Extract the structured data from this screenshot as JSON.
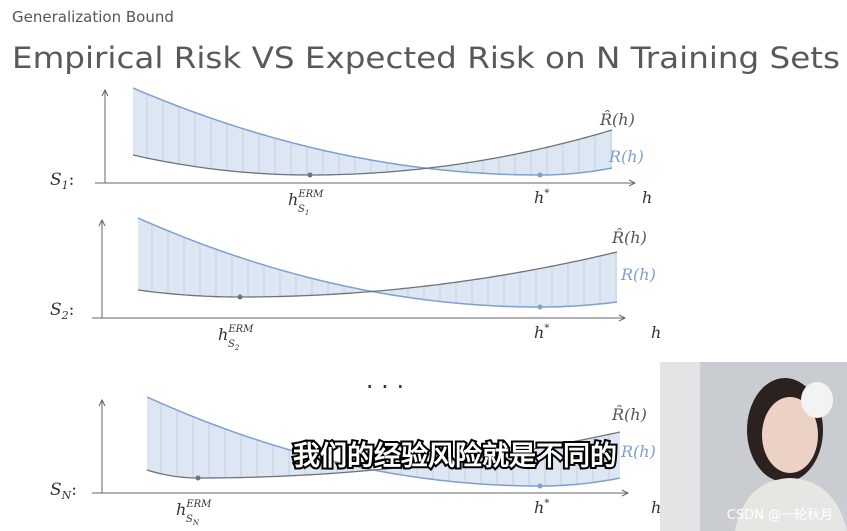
{
  "header": {
    "section": "Generalization Bound",
    "title": "Empirical Risk VS Expected Risk on N Training Sets"
  },
  "panels": [
    {
      "set": {
        "main": "S",
        "sub": "1",
        "suffix": ":"
      },
      "empirical_label": "R̂(h)",
      "expected_label": "R(h)",
      "axis_label": "h",
      "erm": {
        "main": "h",
        "sup": "ERM",
        "sub": "S",
        "subsub": "1"
      },
      "optimum": {
        "main": "h",
        "sup": "*"
      }
    },
    {
      "set": {
        "main": "S",
        "sub": "2",
        "suffix": ":"
      },
      "empirical_label": "R̂(h)",
      "expected_label": "R(h)",
      "axis_label": "h",
      "erm": {
        "main": "h",
        "sup": "ERM",
        "sub": "S",
        "subsub": "2"
      },
      "optimum": {
        "main": "h",
        "sup": "*"
      }
    },
    {
      "set": {
        "main": "S",
        "sub": "N",
        "suffix": ":"
      },
      "empirical_label": "R̂(h)",
      "expected_label": "R(h)",
      "axis_label": "h",
      "erm": {
        "main": "h",
        "sup": "ERM",
        "sub": "S",
        "subsub": "N"
      },
      "optimum": {
        "main": "h",
        "sup": "*"
      }
    }
  ],
  "ellipsis": "· · ·",
  "subtitle": "我们的经验风险就是不同的",
  "watermark": "CSDN @一轮秋月"
}
